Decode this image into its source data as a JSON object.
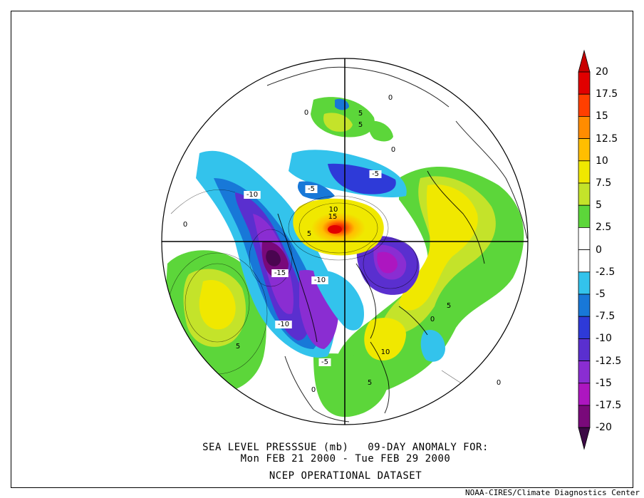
{
  "title": {
    "line1": "SEA LEVEL PRESSSUE (mb)   09-DAY ANOMALY FOR:",
    "line2": "Mon FEB 21 2000 - Tue FEB 29 2000",
    "line3": "NCEP OPERATIONAL DATASET"
  },
  "credit": "NOAA-CIRES/Climate Diagnostics Center",
  "colorbar": {
    "levels": [
      {
        "label": "20",
        "color": "#e10000"
      },
      {
        "label": "17.5",
        "color": "#ff3f00"
      },
      {
        "label": "15",
        "color": "#ff8c00"
      },
      {
        "label": "12.5",
        "color": "#ffbe00"
      },
      {
        "label": "10",
        "color": "#f0e800"
      },
      {
        "label": "7.5",
        "color": "#c4e32a"
      },
      {
        "label": "5",
        "color": "#5cd63a"
      },
      {
        "label": "2.5",
        "color": "#ffffff"
      },
      {
        "label": "0",
        "color": "#ffffff"
      },
      {
        "label": "-2.5",
        "color": "#33c3ec"
      },
      {
        "label": "-5",
        "color": "#1878d8"
      },
      {
        "label": "-7.5",
        "color": "#2e3ad8"
      },
      {
        "label": "-10",
        "color": "#5a2fcf"
      },
      {
        "label": "-12.5",
        "color": "#8a2dd2"
      },
      {
        "label": "-15",
        "color": "#ad16c0"
      },
      {
        "label": "-17.5",
        "color": "#79097a"
      },
      {
        "label": "-20",
        "color": "#4a0550"
      }
    ],
    "top_color": "#c80000",
    "bottom_color": "#3c0a45"
  },
  "contour_labels": [
    "-10",
    "-15",
    "-10",
    "-10",
    "-5",
    "-5",
    "-5",
    "10",
    "15",
    "5",
    "5",
    "5",
    "0",
    "0",
    "0",
    "0",
    "0",
    "5",
    "10",
    "5",
    "5",
    "0",
    "0"
  ]
}
